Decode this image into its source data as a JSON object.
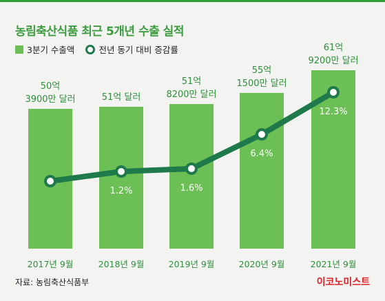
{
  "title": "농림축산식품 최근 5개년 수출 실적",
  "legend": {
    "bar_label": "3분기 수출액",
    "line_label": "전년 동기 대비 증감률"
  },
  "source": "자료: 농림축산식품부",
  "brand": "이코노미스트",
  "colors": {
    "bar": "#6cbf55",
    "line": "#1e7a4b",
    "title": "#3d9c3f",
    "brand": "#e0222a"
  },
  "chart_data": {
    "type": "bar",
    "categories": [
      "2017년 9월",
      "2018년 9월",
      "2019년 9월",
      "2020년 9월",
      "2021년 9월"
    ],
    "series": [
      {
        "name": "3분기 수출액",
        "type": "bar",
        "values": [
          5.039,
          5.1,
          5.182,
          5.515,
          6.192
        ],
        "labels": [
          [
            "50억",
            "3900만 달러"
          ],
          [
            "51억 달러"
          ],
          [
            "51억",
            "8200만 달러"
          ],
          [
            "55억",
            "1500만 달러"
          ],
          [
            "61억",
            "9200만 달러"
          ]
        ]
      },
      {
        "name": "전년 동기 대비 증감률",
        "type": "line",
        "values": [
          null,
          1.2,
          1.6,
          6.4,
          12.3
        ],
        "labels": [
          "",
          "1.2%",
          "1.6%",
          "6.4%",
          "12.3%"
        ]
      }
    ],
    "xlabel": "",
    "ylabel": ""
  }
}
